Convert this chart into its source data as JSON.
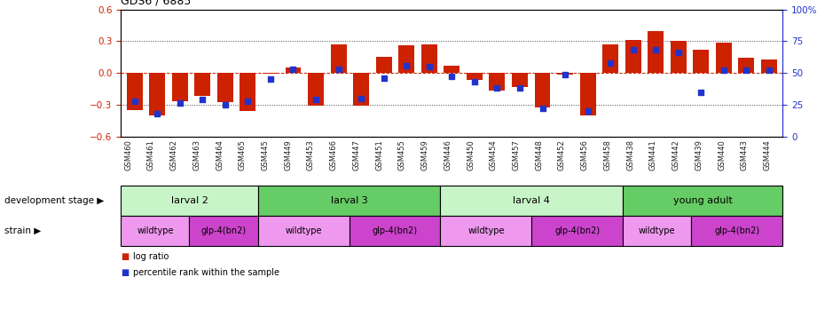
{
  "title": "GDS6 / 6885",
  "samples": [
    "GSM460",
    "GSM461",
    "GSM462",
    "GSM463",
    "GSM464",
    "GSM465",
    "GSM445",
    "GSM449",
    "GSM453",
    "GSM466",
    "GSM447",
    "GSM451",
    "GSM455",
    "GSM459",
    "GSM446",
    "GSM450",
    "GSM454",
    "GSM457",
    "GSM448",
    "GSM452",
    "GSM456",
    "GSM458",
    "GSM438",
    "GSM441",
    "GSM442",
    "GSM439",
    "GSM440",
    "GSM443",
    "GSM444"
  ],
  "log_ratio": [
    -0.35,
    -0.4,
    -0.27,
    -0.22,
    -0.28,
    -0.36,
    -0.01,
    0.05,
    -0.31,
    0.27,
    -0.31,
    0.15,
    0.26,
    0.27,
    0.07,
    -0.07,
    -0.17,
    -0.13,
    -0.33,
    -0.02,
    -0.4,
    0.27,
    0.31,
    0.4,
    0.3,
    0.22,
    0.29,
    0.14,
    0.13
  ],
  "percentile": [
    28,
    18,
    26,
    29,
    25,
    28,
    45,
    53,
    29,
    53,
    30,
    46,
    56,
    55,
    47,
    43,
    38,
    38,
    22,
    49,
    20,
    58,
    68,
    68,
    66,
    35,
    52,
    52,
    52
  ],
  "dev_stages": [
    {
      "label": "larval 2",
      "start": 0,
      "end": 5,
      "color": "#c8f5c8"
    },
    {
      "label": "larval 3",
      "start": 6,
      "end": 13,
      "color": "#66cc66"
    },
    {
      "label": "larval 4",
      "start": 14,
      "end": 21,
      "color": "#c8f5c8"
    },
    {
      "label": "young adult",
      "start": 22,
      "end": 28,
      "color": "#66cc66"
    }
  ],
  "strains": [
    {
      "label": "wildtype",
      "start": 0,
      "end": 2,
      "color": "#ee99ee"
    },
    {
      "label": "glp-4(bn2)",
      "start": 3,
      "end": 5,
      "color": "#cc44cc"
    },
    {
      "label": "wildtype",
      "start": 6,
      "end": 9,
      "color": "#ee99ee"
    },
    {
      "label": "glp-4(bn2)",
      "start": 10,
      "end": 13,
      "color": "#cc44cc"
    },
    {
      "label": "wildtype",
      "start": 14,
      "end": 17,
      "color": "#ee99ee"
    },
    {
      "label": "glp-4(bn2)",
      "start": 18,
      "end": 21,
      "color": "#cc44cc"
    },
    {
      "label": "wildtype",
      "start": 22,
      "end": 24,
      "color": "#ee99ee"
    },
    {
      "label": "glp-4(bn2)",
      "start": 25,
      "end": 28,
      "color": "#cc44cc"
    }
  ],
  "ylim_left": [
    -0.6,
    0.6
  ],
  "ylim_right": [
    0,
    100
  ],
  "yticks_left": [
    -0.6,
    -0.3,
    0.0,
    0.3,
    0.6
  ],
  "yticks_right": [
    0,
    25,
    50,
    75,
    100
  ],
  "bar_color": "#cc2200",
  "dot_color": "#2233cc",
  "zero_line_color": "#cc2200",
  "grid_color": "#444444",
  "background_color": "#ffffff"
}
